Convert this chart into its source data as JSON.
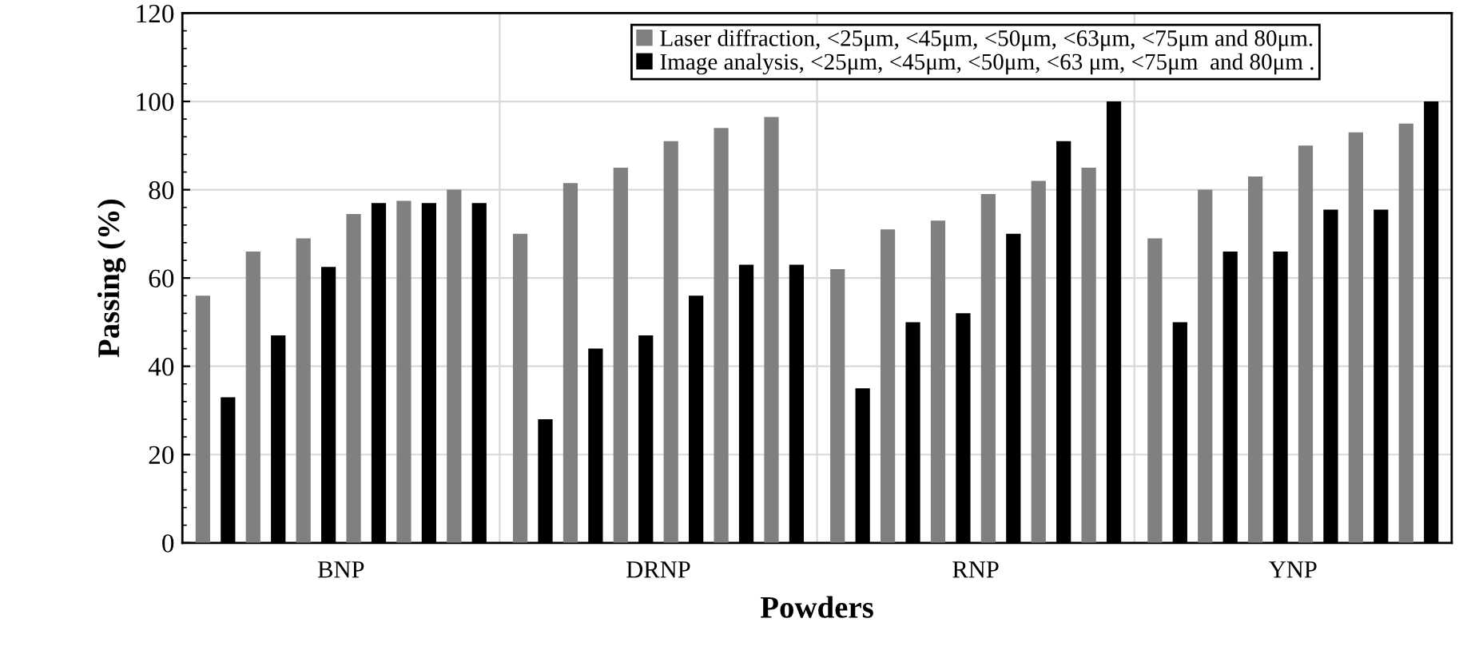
{
  "chart_data": {
    "type": "bar",
    "xlabel": "Powders",
    "ylabel": "Passing (%)",
    "categories": [
      "BNP",
      "DRNP",
      "RNP",
      "YNP"
    ],
    "series": [
      {
        "name": "Laser diffraction, <25μm, <45μm, <50μm, <63μm, <75μm and 80μm.",
        "color": "#808080",
        "values": [
          56,
          70,
          62,
          69
        ]
      },
      {
        "name": "Image analysis, <25μm, <45μm, <50μm, <63 μm, <75μm  and 80μm .",
        "color": "#000000",
        "values": [
          33,
          28,
          35,
          50
        ]
      },
      {
        "color": "#808080",
        "values": [
          66,
          81.5,
          71,
          80
        ]
      },
      {
        "color": "#000000",
        "values": [
          47,
          44,
          50,
          66
        ]
      },
      {
        "color": "#808080",
        "values": [
          69,
          85,
          73,
          83
        ]
      },
      {
        "color": "#000000",
        "values": [
          62.5,
          47,
          52,
          66
        ]
      },
      {
        "color": "#808080",
        "values": [
          74.5,
          91,
          79,
          90
        ]
      },
      {
        "color": "#000000",
        "values": [
          77,
          56,
          70,
          75.5
        ]
      },
      {
        "color": "#808080",
        "values": [
          77.5,
          94,
          82,
          93
        ]
      },
      {
        "color": "#000000",
        "values": [
          77,
          63,
          91,
          75.5
        ]
      },
      {
        "color": "#808080",
        "values": [
          80,
          96.5,
          85,
          95
        ]
      },
      {
        "color": "#000000",
        "values": [
          77,
          63,
          100,
          100
        ]
      }
    ],
    "ylim": [
      0,
      120
    ],
    "yticks": [
      0,
      20,
      40,
      60,
      80,
      100,
      120
    ],
    "grid": true,
    "legend": "top right"
  }
}
